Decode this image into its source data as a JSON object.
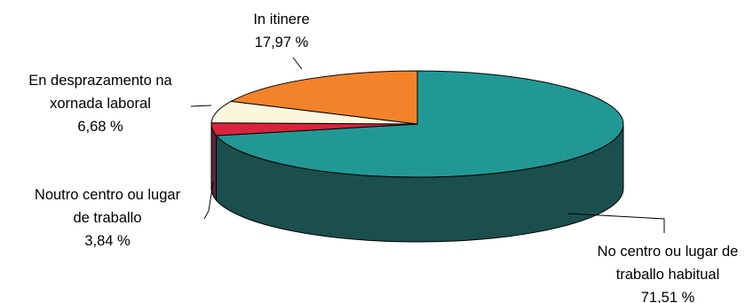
{
  "chart_data": {
    "type": "pie",
    "style": "3d",
    "colors_matter": true,
    "slices": [
      {
        "label_lines": [
          "No centro ou lugar de",
          "traballo habitual"
        ],
        "value_text": "71,51 %",
        "value": 71.51,
        "color": "#229894",
        "side_color": "#1a4f4d"
      },
      {
        "label_lines": [
          "Noutro centro ou lugar",
          "de traballo"
        ],
        "value_text": "3,84 %",
        "value": 3.84,
        "color": "#d9243d",
        "side_color": "#5c2638"
      },
      {
        "label_lines": [
          "En desprazamento na",
          "xornada laboral"
        ],
        "value_text": "6,68 %",
        "value": 6.68,
        "color": "#fbf7dc",
        "side_color": "#ccc6a8"
      },
      {
        "label_lines": [
          "In itinere"
        ],
        "value_text": "17,97 %",
        "value": 17.97,
        "color": "#f3832a",
        "side_color": "#9c521a"
      }
    ]
  }
}
